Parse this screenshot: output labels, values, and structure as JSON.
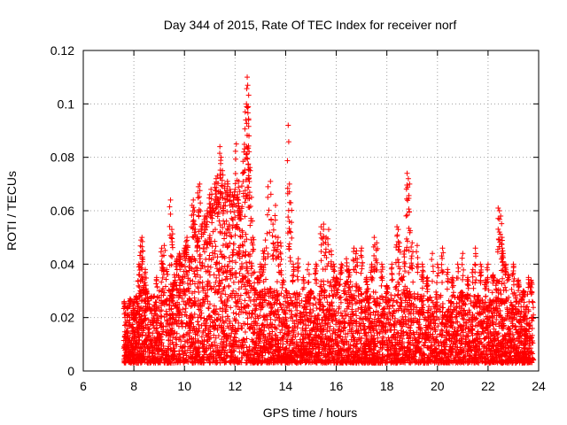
{
  "chart_data": {
    "type": "scatter",
    "title": "Day 344 of 2015, Rate Of TEC Index for receiver norf",
    "xlabel": "GPS time / hours",
    "ylabel": "ROTI / TECUs",
    "xlim": [
      6,
      24
    ],
    "ylim": [
      0,
      0.12
    ],
    "xticks": [
      6,
      8,
      10,
      12,
      14,
      16,
      18,
      20,
      22,
      24
    ],
    "yticks": [
      0,
      0.02,
      0.04,
      0.06,
      0.08,
      0.1,
      0.12
    ],
    "xtick_labels": [
      "6",
      "8",
      "10",
      "12",
      "14",
      "16",
      "18",
      "20",
      "22",
      "24"
    ],
    "ytick_labels": [
      "0",
      "0.02",
      "0.04",
      "0.06",
      "0.08",
      "0.1",
      "0.12"
    ],
    "grid": true,
    "marker": "plus",
    "color": "#ff0000",
    "series": [
      {
        "name": "ROTI",
        "points": [
          [
            7.62,
            0.026
          ],
          [
            7.65,
            0.02
          ],
          [
            7.7,
            0.012
          ],
          [
            7.75,
            0.024
          ],
          [
            7.8,
            0.018
          ],
          [
            7.85,
            0.027
          ],
          [
            7.9,
            0.022
          ],
          [
            7.95,
            0.015
          ],
          [
            8.0,
            0.026
          ],
          [
            8.05,
            0.02
          ],
          [
            8.1,
            0.028
          ],
          [
            8.15,
            0.024
          ],
          [
            8.2,
            0.04
          ],
          [
            8.25,
            0.03
          ],
          [
            8.28,
            0.049
          ],
          [
            8.32,
            0.05
          ],
          [
            8.35,
            0.045
          ],
          [
            8.4,
            0.032
          ],
          [
            8.45,
            0.038
          ],
          [
            8.5,
            0.03
          ],
          [
            8.55,
            0.027
          ],
          [
            8.6,
            0.025
          ],
          [
            8.7,
            0.028
          ],
          [
            8.8,
            0.024
          ],
          [
            8.9,
            0.035
          ],
          [
            9.0,
            0.03
          ],
          [
            9.1,
            0.046
          ],
          [
            9.15,
            0.04
          ],
          [
            9.2,
            0.047
          ],
          [
            9.3,
            0.038
          ],
          [
            9.4,
            0.03
          ],
          [
            9.45,
            0.064
          ],
          [
            9.5,
            0.053
          ],
          [
            9.6,
            0.036
          ],
          [
            9.7,
            0.042
          ],
          [
            9.8,
            0.044
          ],
          [
            9.9,
            0.04
          ],
          [
            10.0,
            0.046
          ],
          [
            10.05,
            0.047
          ],
          [
            10.1,
            0.05
          ],
          [
            10.2,
            0.042
          ],
          [
            10.3,
            0.062
          ],
          [
            10.35,
            0.064
          ],
          [
            10.4,
            0.06
          ],
          [
            10.5,
            0.05
          ],
          [
            10.55,
            0.069
          ],
          [
            10.6,
            0.07
          ],
          [
            10.7,
            0.055
          ],
          [
            10.8,
            0.058
          ],
          [
            10.9,
            0.06
          ],
          [
            11.0,
            0.066
          ],
          [
            11.05,
            0.068
          ],
          [
            11.1,
            0.062
          ],
          [
            11.2,
            0.07
          ],
          [
            11.25,
            0.072
          ],
          [
            11.3,
            0.073
          ],
          [
            11.35,
            0.064
          ],
          [
            11.4,
            0.084
          ],
          [
            11.45,
            0.08
          ],
          [
            11.5,
            0.075
          ],
          [
            11.55,
            0.062
          ],
          [
            11.6,
            0.07
          ],
          [
            11.7,
            0.071
          ],
          [
            11.8,
            0.068
          ],
          [
            11.9,
            0.066
          ],
          [
            12.0,
            0.068
          ],
          [
            12.05,
            0.085
          ],
          [
            12.1,
            0.066
          ],
          [
            12.15,
            0.071
          ],
          [
            12.2,
            0.06
          ],
          [
            12.3,
            0.074
          ],
          [
            12.35,
            0.082
          ],
          [
            12.4,
            0.097
          ],
          [
            12.45,
            0.1
          ],
          [
            12.48,
            0.11
          ],
          [
            12.5,
            0.107
          ],
          [
            12.52,
            0.099
          ],
          [
            12.55,
            0.088
          ],
          [
            12.6,
            0.075
          ],
          [
            12.65,
            0.065
          ],
          [
            12.7,
            0.05
          ],
          [
            12.8,
            0.03
          ],
          [
            12.9,
            0.035
          ],
          [
            13.0,
            0.04
          ],
          [
            13.1,
            0.045
          ],
          [
            13.2,
            0.049
          ],
          [
            13.3,
            0.069
          ],
          [
            13.4,
            0.071
          ],
          [
            13.5,
            0.055
          ],
          [
            13.6,
            0.062
          ],
          [
            13.7,
            0.05
          ],
          [
            13.8,
            0.048
          ],
          [
            13.9,
            0.034
          ],
          [
            14.0,
            0.03
          ],
          [
            14.1,
            0.092
          ],
          [
            14.15,
            0.07
          ],
          [
            14.2,
            0.063
          ],
          [
            14.3,
            0.04
          ],
          [
            14.5,
            0.042
          ],
          [
            14.7,
            0.035
          ],
          [
            14.9,
            0.04
          ],
          [
            15.0,
            0.03
          ],
          [
            15.2,
            0.04
          ],
          [
            15.4,
            0.054
          ],
          [
            15.5,
            0.055
          ],
          [
            15.6,
            0.05
          ],
          [
            15.7,
            0.053
          ],
          [
            15.8,
            0.045
          ],
          [
            15.9,
            0.04
          ],
          [
            16.0,
            0.035
          ],
          [
            16.2,
            0.04
          ],
          [
            16.4,
            0.042
          ],
          [
            16.5,
            0.038
          ],
          [
            16.7,
            0.046
          ],
          [
            16.8,
            0.045
          ],
          [
            17.0,
            0.046
          ],
          [
            17.2,
            0.035
          ],
          [
            17.4,
            0.04
          ],
          [
            17.5,
            0.05
          ],
          [
            17.6,
            0.048
          ],
          [
            17.8,
            0.04
          ],
          [
            18.0,
            0.032
          ],
          [
            18.2,
            0.04
          ],
          [
            18.4,
            0.054
          ],
          [
            18.45,
            0.053
          ],
          [
            18.5,
            0.048
          ],
          [
            18.6,
            0.035
          ],
          [
            18.7,
            0.045
          ],
          [
            18.8,
            0.074
          ],
          [
            18.85,
            0.072
          ],
          [
            18.9,
            0.07
          ],
          [
            19.0,
            0.048
          ],
          [
            19.2,
            0.047
          ],
          [
            19.4,
            0.04
          ],
          [
            19.6,
            0.035
          ],
          [
            19.8,
            0.044
          ],
          [
            20.0,
            0.04
          ],
          [
            20.2,
            0.046
          ],
          [
            20.4,
            0.038
          ],
          [
            20.6,
            0.035
          ],
          [
            20.8,
            0.04
          ],
          [
            21.0,
            0.044
          ],
          [
            21.2,
            0.035
          ],
          [
            21.4,
            0.038
          ],
          [
            21.5,
            0.046
          ],
          [
            21.7,
            0.04
          ],
          [
            21.9,
            0.034
          ],
          [
            22.0,
            0.04
          ],
          [
            22.2,
            0.036
          ],
          [
            22.4,
            0.061
          ],
          [
            22.45,
            0.06
          ],
          [
            22.5,
            0.058
          ],
          [
            22.55,
            0.05
          ],
          [
            22.6,
            0.044
          ],
          [
            22.7,
            0.04
          ],
          [
            22.8,
            0.036
          ],
          [
            23.0,
            0.04
          ],
          [
            23.2,
            0.034
          ],
          [
            23.4,
            0.03
          ],
          [
            23.6,
            0.035
          ],
          [
            23.7,
            0.034
          ],
          [
            23.75,
            0.026
          ]
        ]
      }
    ],
    "dense_band": {
      "x_start": 7.6,
      "x_end": 23.8,
      "base_min": 0.003,
      "upper_envelope": [
        [
          7.6,
          0.022
        ],
        [
          8.0,
          0.024
        ],
        [
          8.5,
          0.028
        ],
        [
          9.0,
          0.03
        ],
        [
          9.5,
          0.035
        ],
        [
          10.0,
          0.04
        ],
        [
          10.5,
          0.045
        ],
        [
          11.0,
          0.052
        ],
        [
          11.5,
          0.056
        ],
        [
          12.0,
          0.058
        ],
        [
          12.5,
          0.05
        ],
        [
          13.0,
          0.03
        ],
        [
          13.5,
          0.032
        ],
        [
          14.0,
          0.03
        ],
        [
          14.5,
          0.03
        ],
        [
          15.0,
          0.028
        ],
        [
          15.5,
          0.035
        ],
        [
          16.0,
          0.032
        ],
        [
          16.5,
          0.034
        ],
        [
          17.0,
          0.032
        ],
        [
          17.5,
          0.03
        ],
        [
          18.0,
          0.028
        ],
        [
          18.5,
          0.034
        ],
        [
          19.0,
          0.03
        ],
        [
          19.5,
          0.028
        ],
        [
          20.0,
          0.03
        ],
        [
          20.5,
          0.028
        ],
        [
          21.0,
          0.03
        ],
        [
          21.5,
          0.028
        ],
        [
          22.0,
          0.03
        ],
        [
          22.5,
          0.036
        ],
        [
          23.0,
          0.03
        ],
        [
          23.5,
          0.028
        ],
        [
          23.8,
          0.026
        ]
      ]
    }
  }
}
